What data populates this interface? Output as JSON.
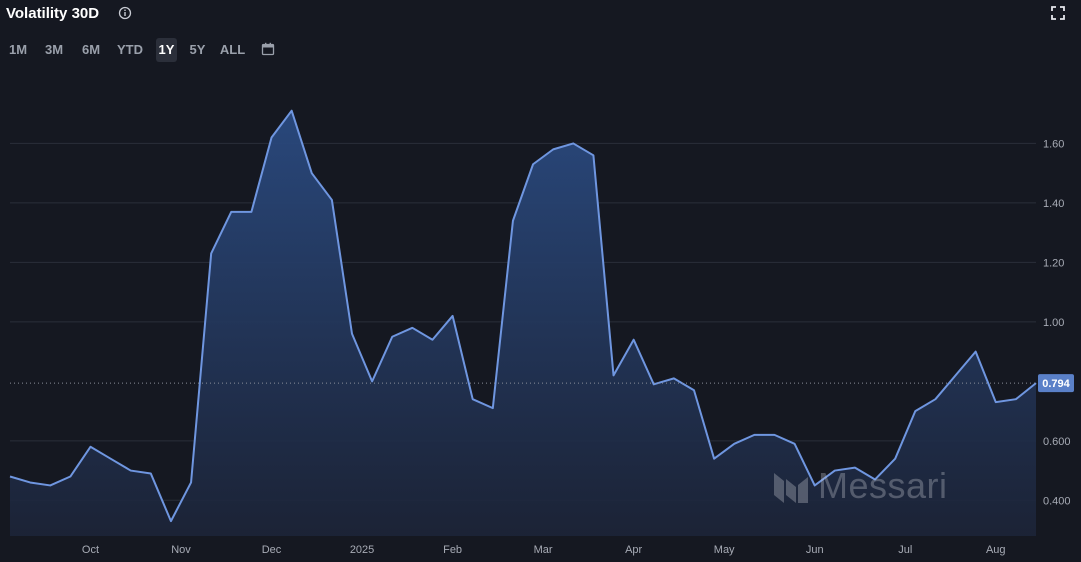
{
  "header": {
    "title": "Volatility 30D"
  },
  "range_buttons": [
    {
      "label": "1M",
      "active": false
    },
    {
      "label": "3M",
      "active": false
    },
    {
      "label": "6M",
      "active": false
    },
    {
      "label": "YTD",
      "active": false
    },
    {
      "label": "1Y",
      "active": true
    },
    {
      "label": "5Y",
      "active": false
    },
    {
      "label": "ALL",
      "active": false
    }
  ],
  "watermark": {
    "text": "Messari"
  },
  "colors": {
    "background": "#151821",
    "line": "#6f96e0",
    "area_top": "#2a4a80",
    "area_bottom": "#1c2438",
    "grid": "#2a2e39",
    "label_bg": "#5a80c8"
  },
  "chart_data": {
    "type": "area",
    "y_tick_labels": [
      "0.400",
      "0.600",
      "0.794",
      "1.00",
      "1.20",
      "1.40",
      "1.60"
    ],
    "yticks": [
      0.4,
      0.6,
      1.0,
      1.2,
      1.4,
      1.6
    ],
    "ylim": [
      0.28,
      1.82
    ],
    "x_labels": [
      {
        "label": "Oct",
        "idx": 4
      },
      {
        "label": "Nov",
        "idx": 8.5
      },
      {
        "label": "Dec",
        "idx": 13
      },
      {
        "label": "2025",
        "idx": 17.5
      },
      {
        "label": "Feb",
        "idx": 22
      },
      {
        "label": "Mar",
        "idx": 26.5
      },
      {
        "label": "Apr",
        "idx": 31
      },
      {
        "label": "May",
        "idx": 35.5
      },
      {
        "label": "Jun",
        "idx": 40
      },
      {
        "label": "Jul",
        "idx": 44.5
      },
      {
        "label": "Aug",
        "idx": 49
      }
    ],
    "last_value": 0.794,
    "last_value_label": "0.794",
    "values": [
      0.48,
      0.46,
      0.45,
      0.48,
      0.58,
      0.54,
      0.5,
      0.49,
      0.33,
      0.46,
      1.23,
      1.37,
      1.37,
      1.62,
      1.71,
      1.5,
      1.41,
      0.96,
      0.8,
      0.95,
      0.98,
      0.94,
      1.02,
      0.74,
      0.71,
      1.34,
      1.53,
      1.58,
      1.6,
      1.56,
      0.82,
      0.94,
      0.79,
      0.81,
      0.77,
      0.54,
      0.59,
      0.62,
      0.62,
      0.59,
      0.45,
      0.5,
      0.51,
      0.47,
      0.54,
      0.7,
      0.74,
      0.82,
      0.9,
      0.73,
      0.74,
      0.794
    ]
  }
}
